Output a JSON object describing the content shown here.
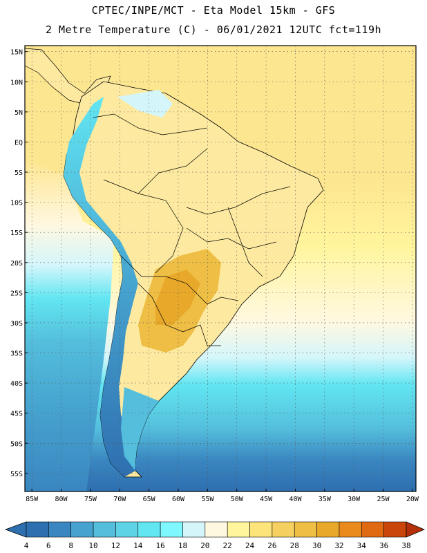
{
  "title_line1": "CPTEC/INPE/MCT -  Eta Model 15km - GFS",
  "title_line2": "2 Metre Temperature (C) - 06/01/2021 12UTC fct=119h",
  "lat_labels": [
    "15N",
    "10N",
    "5N",
    "EQ",
    "5S",
    "10S",
    "15S",
    "20S",
    "25S",
    "30S",
    "35S",
    "40S",
    "45S",
    "50S",
    "55S"
  ],
  "lat_values": [
    15,
    10,
    5,
    0,
    -5,
    -10,
    -15,
    -20,
    -25,
    -30,
    -35,
    -40,
    -45,
    -50,
    -55
  ],
  "lon_labels": [
    "85W",
    "80W",
    "75W",
    "70W",
    "65W",
    "60W",
    "55W",
    "50W",
    "45W",
    "40W",
    "35W",
    "30W",
    "25W",
    "20W"
  ],
  "lon_values": [
    -85,
    -80,
    -75,
    -70,
    -65,
    -60,
    -55,
    -50,
    -45,
    -40,
    -35,
    -30,
    -25,
    -20
  ],
  "colorbar": {
    "values": [
      4,
      6,
      8,
      10,
      12,
      14,
      16,
      18,
      20,
      22,
      24,
      26,
      28,
      30,
      32,
      34,
      36,
      38
    ],
    "colors": [
      "#2e6fb0",
      "#3a86c0",
      "#46a3cf",
      "#54bedc",
      "#5fd3e6",
      "#62e6f2",
      "#7ff7ff",
      "#d4f6fb",
      "#fff8e1",
      "#fff59d",
      "#fde47a",
      "#f5d060",
      "#eebe45",
      "#e8a92a",
      "#ea8a1d",
      "#e06a12",
      "#c9450a",
      "#b3300a"
    ]
  },
  "map_colors": {
    "ocean_tropical": "#fde690",
    "ocean_mid": "#fff59d",
    "ocean_subtrop": "#fff8e1",
    "ocean_cool": "#d4f6fb",
    "ocean_cold1": "#62e6f2",
    "ocean_cold2": "#46a3cf",
    "ocean_cold3": "#2e6fb0",
    "land_warm": "#fdeaa0",
    "land_hot": "#eebe45",
    "andes": "#46a3cf"
  }
}
